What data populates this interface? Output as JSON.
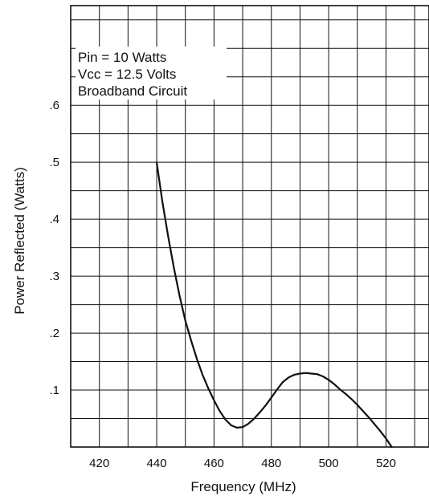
{
  "chart_data": {
    "type": "line",
    "title": "",
    "xlabel": "Frequency (MHz)",
    "ylabel": "Power Reflected (Watts)",
    "xlim": [
      410,
      535
    ],
    "ylim": [
      0,
      0.775
    ],
    "grid": true,
    "x_ticks": [
      420,
      440,
      460,
      480,
      500,
      520
    ],
    "x_tick_labels": [
      "420",
      "440",
      "460",
      "480",
      "500",
      "520"
    ],
    "y_ticks": [
      0.1,
      0.2,
      0.3,
      0.4,
      0.5,
      0.6
    ],
    "y_tick_labels": [
      ".1",
      ".2",
      ".3",
      ".4",
      ".5",
      ".6"
    ],
    "annotations": [
      "Pin = 10 Watts",
      "Vcc = 12.5 Volts",
      "Broadband Circuit"
    ],
    "series": [
      {
        "x": [
          440,
          442,
          444,
          446,
          448,
          450,
          452,
          454,
          456,
          458,
          460,
          462,
          464,
          466,
          468,
          470,
          472,
          474,
          476,
          478,
          480,
          482,
          484,
          486,
          488,
          490,
          492,
          494,
          496,
          498,
          500,
          502,
          504,
          506,
          508,
          510,
          512,
          514,
          516,
          518,
          520,
          522
        ],
        "y": [
          0.5,
          0.43,
          0.37,
          0.315,
          0.265,
          0.222,
          0.187,
          0.155,
          0.127,
          0.103,
          0.082,
          0.063,
          0.048,
          0.038,
          0.034,
          0.035,
          0.041,
          0.05,
          0.061,
          0.073,
          0.087,
          0.101,
          0.114,
          0.122,
          0.127,
          0.129,
          0.13,
          0.129,
          0.128,
          0.124,
          0.118,
          0.11,
          0.101,
          0.093,
          0.084,
          0.074,
          0.063,
          0.052,
          0.04,
          0.028,
          0.015,
          0.0
        ]
      }
    ]
  }
}
